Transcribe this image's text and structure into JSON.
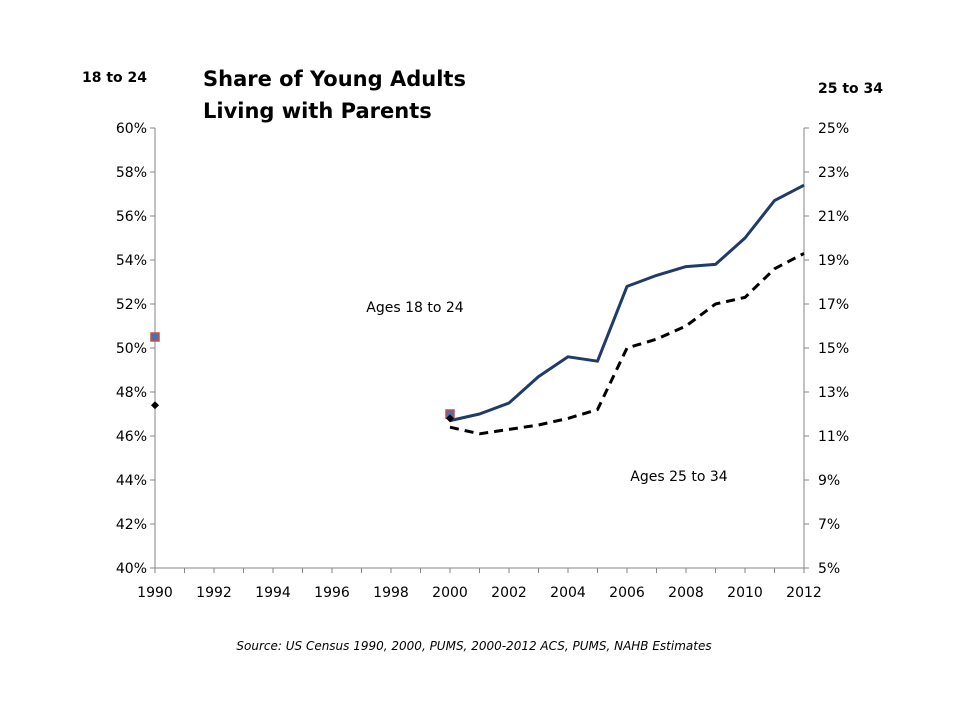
{
  "chart_data": {
    "type": "line",
    "title": "Share of Young Adults\nLiving with Parents",
    "left_axis_title": "18 to 24",
    "right_axis_title": "25 to 34",
    "source": "Source: US Census 1990, 2000, PUMS, 2000-2012 ACS, PUMS, NAHB Estimates",
    "x_ticks": [
      "1990",
      "1992",
      "1994",
      "1996",
      "1998",
      "2000",
      "2002",
      "2004",
      "2006",
      "2008",
      "2010",
      "2012"
    ],
    "xlim": [
      1990,
      2012
    ],
    "y_left": {
      "min": 40,
      "max": 60,
      "ticks": [
        "40%",
        "42%",
        "44%",
        "46%",
        "48%",
        "50%",
        "52%",
        "54%",
        "56%",
        "58%",
        "60%"
      ]
    },
    "y_right": {
      "min": 5,
      "max": 25,
      "ticks": [
        "5%",
        "7%",
        "9%",
        "11%",
        "13%",
        "15%",
        "17%",
        "19%",
        "21%",
        "23%",
        "25%"
      ]
    },
    "series": [
      {
        "label": "Ages 18 to 24",
        "axis": "left",
        "style": "solid",
        "color": "#1F3B69",
        "x": [
          2000,
          2001,
          2002,
          2003,
          2004,
          2005,
          2006,
          2007,
          2008,
          2009,
          2010,
          2011,
          2012
        ],
        "y": [
          46.7,
          47.0,
          47.5,
          48.7,
          49.6,
          49.4,
          52.8,
          53.3,
          53.7,
          53.8,
          55.0,
          56.7,
          57.4
        ]
      },
      {
        "label": "Ages 25 to 34",
        "axis": "right",
        "style": "dashed",
        "color": "#000000",
        "x": [
          2000,
          2001,
          2002,
          2003,
          2004,
          2005,
          2006,
          2007,
          2008,
          2009,
          2010,
          2011,
          2012
        ],
        "y": [
          11.4,
          11.1,
          11.3,
          11.5,
          11.8,
          12.2,
          15.0,
          15.4,
          16.0,
          17.0,
          17.3,
          18.6,
          19.3
        ]
      }
    ],
    "point_markers": [
      {
        "name": "18-24 census",
        "axis": "left",
        "shape": "square",
        "fill": "#4F6FA8",
        "edge": "#C0504D",
        "x": [
          1990,
          2000
        ],
        "y": [
          50.5,
          47.0
        ]
      },
      {
        "name": "25-34 census",
        "axis": "right",
        "shape": "diamond",
        "fill": "#000000",
        "x": [
          1990,
          2000
        ],
        "y": [
          12.4,
          11.8
        ]
      }
    ]
  }
}
